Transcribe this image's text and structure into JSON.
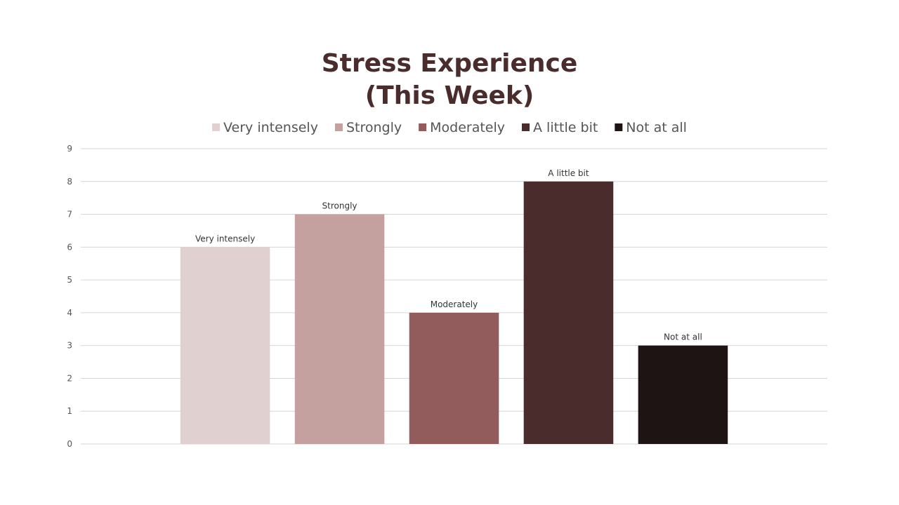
{
  "chart_data": {
    "type": "bar",
    "title": [
      "Stress Experience",
      "(This Week)"
    ],
    "series": [
      {
        "name": "Very intensely",
        "color": "#e0d1d0",
        "values": [
          6
        ]
      },
      {
        "name": "Strongly",
        "color": "#c4a09f",
        "values": [
          7
        ]
      },
      {
        "name": "Moderately",
        "color": "#925c5c",
        "values": [
          4
        ]
      },
      {
        "name": "A little bit",
        "color": "#4a2c2d",
        "values": [
          8
        ]
      },
      {
        "name": "Not at all",
        "color": "#1e1414",
        "values": [
          3
        ]
      }
    ],
    "ylim": [
      0,
      9
    ],
    "yticks": [
      0,
      1,
      2,
      3,
      4,
      5,
      6,
      7,
      8,
      9
    ],
    "grid": true,
    "legend": "top"
  }
}
